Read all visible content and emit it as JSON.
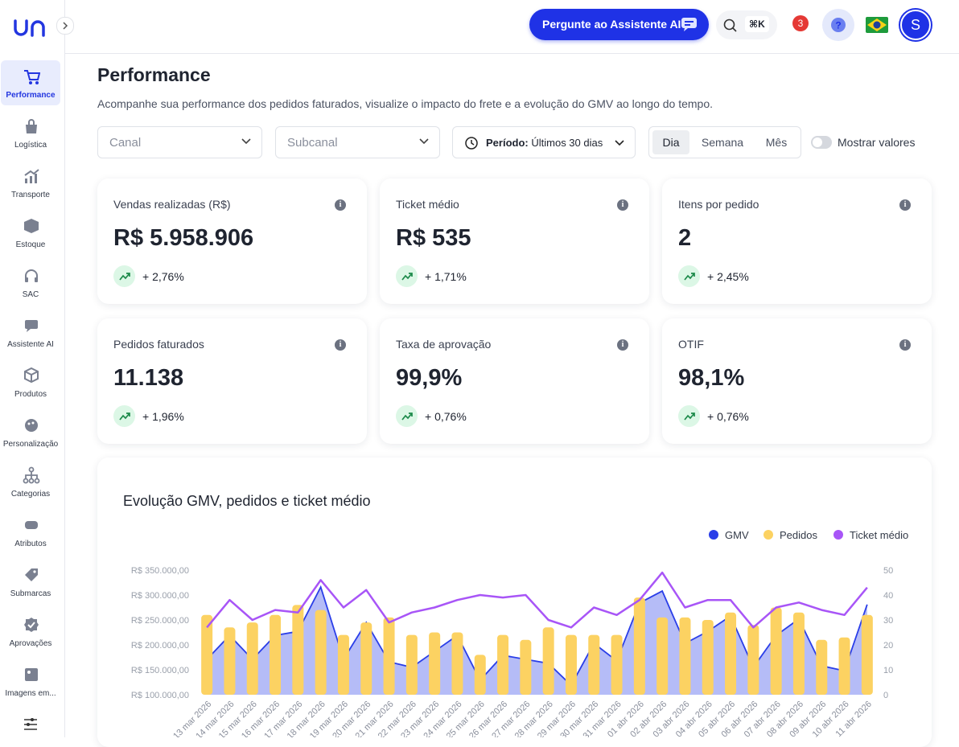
{
  "sidebar": {
    "items": [
      "Performance",
      "Logística",
      "Transporte",
      "Estoque",
      "SAC",
      "Assistente AI",
      "Produtos",
      "Personalização",
      "Categorias",
      "Atributos",
      "Submarcas",
      "Aprovações",
      "Imagens em..."
    ]
  },
  "header": {
    "assistant_button": "Pergunte ao Assistente AI",
    "search_shortcut": "⌘K",
    "notifications": 3,
    "avatar": "S"
  },
  "page": {
    "title": "Performance",
    "subtitle": "Acompanhe sua performance dos pedidos faturados, visualize o impacto do frete e a evolução do GMV ao longo do tempo."
  },
  "filters": {
    "channel": "Canal",
    "subchannel": "Subcanal",
    "period_label": "Período:",
    "period_value": "Últimos 30 dias",
    "granularity": [
      "Dia",
      "Semana",
      "Mês"
    ],
    "toggle": "Mostrar valores"
  },
  "kpis": [
    {
      "label": "Vendas realizadas (R$)",
      "value": "R$ 5.958.906",
      "change": "+ 2,76%"
    },
    {
      "label": "Ticket médio",
      "value": "R$ 535",
      "change": "+ 1,71%"
    },
    {
      "label": "Itens por pedido",
      "value": "2",
      "change": "+ 2,45%"
    },
    {
      "label": "Pedidos faturados",
      "value": "11.138",
      "change": "+ 1,96%"
    },
    {
      "label": "Taxa de aprovação",
      "value": "99,9%",
      "change": "+ 0,76%"
    },
    {
      "label": "OTIF",
      "value": "98,1%",
      "change": "+ 0,76%"
    }
  ],
  "chart_data": {
    "type": "combo",
    "title": "Evolução GMV, pedidos e ticket médio",
    "legend": "top-right",
    "categories": [
      "13 mar 2026",
      "14 mar 2026",
      "15 mar 2026",
      "16 mar 2026",
      "17 mar 2026",
      "18 mar 2026",
      "19 mar 2026",
      "20 mar 2026",
      "21 mar 2026",
      "22 mar 2026",
      "23 mar 2026",
      "24 mar 2026",
      "25 mar 2026",
      "26 mar 2026",
      "27 mar 2026",
      "28 mar 2026",
      "29 mar 2026",
      "30 mar 2026",
      "31 mar 2026",
      "01 abr 2026",
      "02 abr 2026",
      "03 abr 2026",
      "04 abr 2026",
      "05 abr 2026",
      "06 abr 2026",
      "07 abr 2026",
      "08 abr 2026",
      "09 abr 2026",
      "10 abr 2026",
      "11 abr 2026"
    ],
    "series": [
      {
        "name": "GMV",
        "type": "area",
        "color": "#2a3ee8",
        "axis": "y",
        "values": [
          171000,
          219000,
          171000,
          219000,
          227000,
          316000,
          171000,
          245000,
          166000,
          155000,
          187000,
          219000,
          129000,
          179000,
          171000,
          163000,
          119000,
          203000,
          168000,
          284000,
          308000,
          203000,
          227000,
          258000,
          155000,
          219000,
          252000,
          158000,
          148000,
          281000
        ]
      },
      {
        "name": "Pedidos",
        "type": "bar",
        "color": "#fcd262",
        "axis": "y2",
        "values": [
          32,
          27,
          29,
          32,
          36,
          34,
          24,
          29,
          31,
          24,
          25,
          25,
          16,
          24,
          22,
          27,
          24,
          24,
          24,
          39,
          31,
          31,
          30,
          33,
          28,
          35,
          33,
          22,
          23,
          32
        ]
      },
      {
        "name": "Ticket médio",
        "type": "line",
        "color": "#a855f7",
        "axis": "y2",
        "values": [
          27,
          38,
          30,
          34,
          33,
          46,
          35,
          42,
          29,
          33,
          35,
          38,
          40,
          39,
          40,
          30,
          27,
          35,
          32,
          38,
          49,
          35,
          38,
          38,
          27,
          35,
          37,
          34,
          32,
          43
        ]
      }
    ],
    "ylim": [
      100000,
      350000
    ],
    "yticks": [
      {
        "value": 100000,
        "label": "R$ 100.000,00"
      },
      {
        "value": 150000,
        "label": "R$ 150.000,00"
      },
      {
        "value": 200000,
        "label": "R$ 200.000,00"
      },
      {
        "value": 250000,
        "label": "R$ 250.000,00"
      },
      {
        "value": 300000,
        "label": "R$ 300.000,00"
      },
      {
        "value": 350000,
        "label": "R$ 350.000,00"
      }
    ],
    "y2lim": [
      0,
      50
    ],
    "y2ticks": [
      0,
      10,
      20,
      30,
      40,
      50
    ]
  }
}
